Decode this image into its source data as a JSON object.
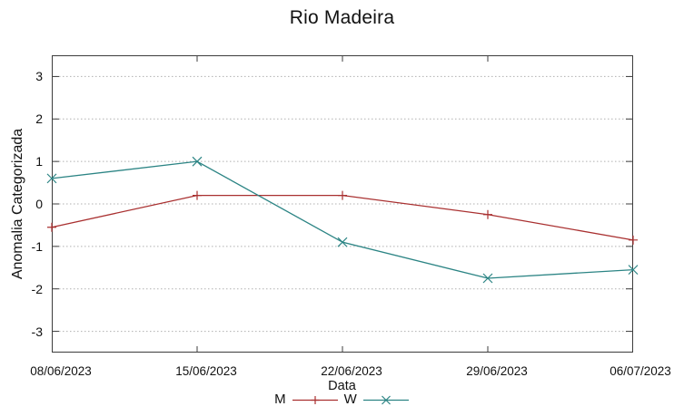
{
  "chart_data": {
    "type": "line",
    "title": "Rio Madeira",
    "xlabel": "Data",
    "ylabel": "Anomalia Categorizada",
    "categories": [
      "08/06/2023",
      "15/06/2023",
      "22/06/2023",
      "29/06/2023",
      "06/07/2023"
    ],
    "yticks": [
      3,
      2,
      1,
      0,
      -1,
      -2,
      -3
    ],
    "ylim": [
      -3.5,
      3.5
    ],
    "grid": "horizontal-dashed",
    "legend_position": "bottom-center",
    "series": [
      {
        "name": "M",
        "color": "#a93030",
        "marker": "plus",
        "values": [
          -0.55,
          0.2,
          0.2,
          -0.25,
          -0.85
        ]
      },
      {
        "name": "W",
        "color": "#2b8484",
        "marker": "cross",
        "values": [
          0.6,
          1.0,
          -0.9,
          -1.75,
          -1.55
        ]
      }
    ],
    "colors": {
      "axis": "#3c3c3c",
      "grid": "#b0b0b0",
      "text": "#111111",
      "background": "#ffffff"
    }
  }
}
